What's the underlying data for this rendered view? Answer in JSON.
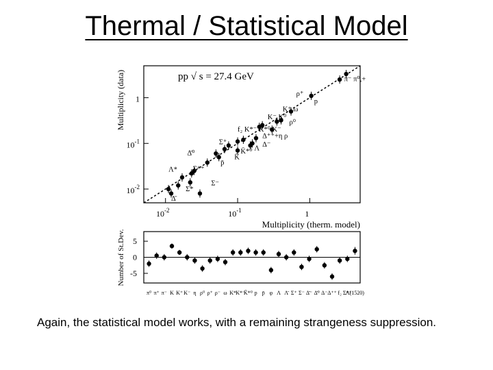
{
  "slide": {
    "title": "Thermal / Statistical Model",
    "caption": "Again, the statistical model works, with a remaining strangeness suppression."
  },
  "chart_data": [
    {
      "type": "scatter",
      "title": "pp √ s = 27.4 GeV",
      "xlabel": "Multiplicity (therm. model)",
      "ylabel": "Multiplicity (data)",
      "x_scale": "log",
      "y_scale": "log",
      "xlim": [
        0.005,
        5
      ],
      "ylim": [
        0.005,
        5
      ],
      "xticks": [
        {
          "value": 0.01,
          "base": "10",
          "exp": "-2"
        },
        {
          "value": 0.1,
          "base": "10",
          "exp": "-1"
        },
        {
          "value": 1,
          "base": "1",
          "exp": ""
        }
      ],
      "yticks": [
        {
          "value": 0.01,
          "base": "10",
          "exp": "-2"
        },
        {
          "value": 0.1,
          "base": "10",
          "exp": "-1"
        },
        {
          "value": 1,
          "base": "1",
          "exp": ""
        }
      ],
      "reference_line": "y = x (dashed)",
      "points": [
        {
          "x": 3.2,
          "y": 3.3
        },
        {
          "x": 2.6,
          "y": 2.5
        },
        {
          "x": 1.05,
          "y": 1.1
        },
        {
          "x": 0.55,
          "y": 0.5
        },
        {
          "x": 0.4,
          "y": 0.32
        },
        {
          "x": 0.35,
          "y": 0.3
        },
        {
          "x": 0.3,
          "y": 0.2
        },
        {
          "x": 0.22,
          "y": 0.25
        },
        {
          "x": 0.2,
          "y": 0.23
        },
        {
          "x": 0.18,
          "y": 0.13
        },
        {
          "x": 0.16,
          "y": 0.1
        },
        {
          "x": 0.15,
          "y": 0.09
        },
        {
          "x": 0.12,
          "y": 0.12
        },
        {
          "x": 0.1,
          "y": 0.11
        },
        {
          "x": 0.1,
          "y": 0.07
        },
        {
          "x": 0.075,
          "y": 0.09
        },
        {
          "x": 0.066,
          "y": 0.075
        },
        {
          "x": 0.055,
          "y": 0.05
        },
        {
          "x": 0.05,
          "y": 0.06
        },
        {
          "x": 0.038,
          "y": 0.038
        },
        {
          "x": 0.025,
          "y": 0.025
        },
        {
          "x": 0.023,
          "y": 0.022
        },
        {
          "x": 0.017,
          "y": 0.018
        },
        {
          "x": 0.022,
          "y": 0.014
        },
        {
          "x": 0.015,
          "y": 0.012
        },
        {
          "x": 0.011,
          "y": 0.01
        },
        {
          "x": 0.012,
          "y": 0.008
        },
        {
          "x": 0.03,
          "y": 0.008
        }
      ],
      "annotations": [
        {
          "text": "π⁻ π⁰,+",
          "x": 3.0,
          "y": 2.3
        },
        {
          "text": "ρ⁺",
          "x": 0.65,
          "y": 1.1
        },
        {
          "text": "p",
          "x": 1.15,
          "y": 0.75
        },
        {
          "text": "K⁺ ω",
          "x": 0.42,
          "y": 0.5
        },
        {
          "text": "K⁻ K⁰",
          "x": 0.26,
          "y": 0.34
        },
        {
          "text": "ρ⁰",
          "x": 0.52,
          "y": 0.26
        },
        {
          "text": "f₂ K*⁻ K*⁰ K⁻",
          "x": 0.1,
          "y": 0.18
        },
        {
          "text": "Δ⁺⁺+η ρ",
          "x": 0.22,
          "y": 0.13
        },
        {
          "text": "Σ⁺",
          "x": 0.055,
          "y": 0.095
        },
        {
          "text": "Δ⁻",
          "x": 0.22,
          "y": 0.085
        },
        {
          "text": "Λ",
          "x": 0.17,
          "y": 0.07
        },
        {
          "text": "K̄*⁰",
          "x": 0.11,
          "y": 0.06
        },
        {
          "text": "Δ̄⁰",
          "x": 0.02,
          "y": 0.055
        },
        {
          "text": "K̄",
          "x": 0.09,
          "y": 0.045
        },
        {
          "text": "p̄",
          "x": 0.058,
          "y": 0.034
        },
        {
          "text": "Λ*",
          "x": 0.011,
          "y": 0.024
        },
        {
          "text": "Σ*⁺",
          "x": 0.024,
          "y": 0.025
        },
        {
          "text": "Σ⁻",
          "x": 0.043,
          "y": 0.012
        },
        {
          "text": "Σ*",
          "x": 0.019,
          "y": 0.009
        },
        {
          "text": "Δ̄",
          "x": 0.012,
          "y": 0.0055
        }
      ]
    },
    {
      "type": "scatter",
      "xlabel": "",
      "ylabel": "Number of St.Dev.",
      "ylim": [
        -8,
        8
      ],
      "yticks": [
        5,
        0,
        -5
      ],
      "reference_line": "y = 0",
      "categories": [
        "π⁰",
        "π⁺",
        "π⁻",
        "K",
        "K⁺",
        "K⁻",
        "η",
        "ρ⁰",
        "ρ⁺",
        "ρ⁻",
        "ω",
        "K*",
        "K*⁻",
        "K̄*⁰",
        "p",
        "p̄",
        "φ",
        "Λ",
        "Λ̄",
        "Σ⁺",
        "Σ⁻",
        "Δ̄⁻",
        "Δ̄⁰",
        "Δ⁻",
        "Δ⁺⁺",
        "f₂",
        "Σ*⁺",
        "Λ(1520)"
      ],
      "values": [
        -2.0,
        0.5,
        0.0,
        3.5,
        1.5,
        0.0,
        -1.0,
        -3.5,
        -1.0,
        -0.5,
        -1.5,
        1.5,
        1.5,
        2.0,
        1.5,
        1.5,
        -4.0,
        1.0,
        0.0,
        1.5,
        -3.0,
        -0.5,
        2.5,
        -2.5,
        -6.0,
        -1.0,
        -0.5,
        2.0
      ],
      "errors": [
        1.0,
        1.0,
        1.0,
        0.8,
        0.8,
        1.0,
        1.0,
        1.0,
        1.0,
        1.0,
        1.0,
        1.0,
        1.0,
        1.0,
        1.0,
        1.0,
        1.0,
        1.0,
        1.0,
        1.0,
        1.0,
        1.0,
        1.0,
        1.0,
        1.0,
        1.0,
        1.0,
        1.2
      ]
    }
  ]
}
